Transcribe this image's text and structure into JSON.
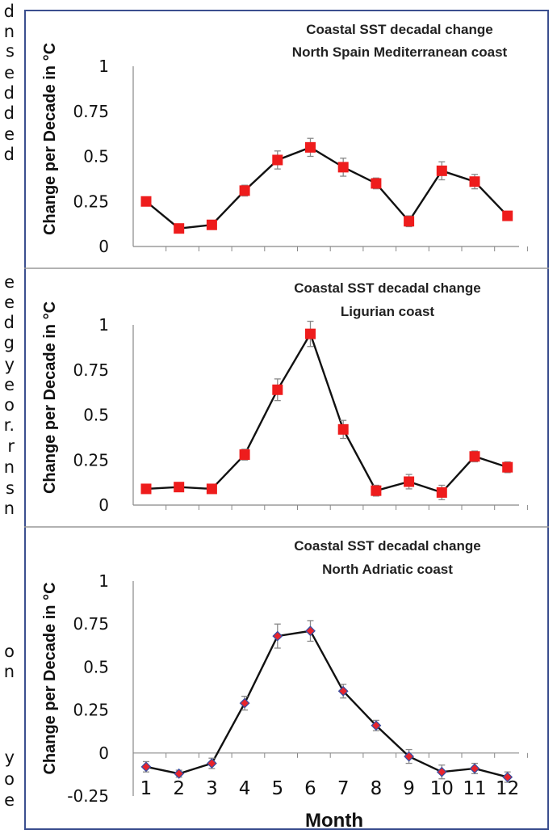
{
  "left_text_fragments": [
    "d",
    "n",
    "s",
    "e",
    "d",
    "d",
    "e",
    "d",
    "",
    "",
    "e",
    "e",
    "d",
    "g",
    "y",
    "e",
    "o",
    "r.",
    "r",
    "n",
    "s",
    "n",
    "",
    "o",
    "n",
    "",
    "y",
    "o",
    "e"
  ],
  "chart_data": [
    {
      "type": "line",
      "title": "Coastal SST decadal change",
      "subtitle": "North Spain Mediterranean coast",
      "ylabel": "Change per Decade in °C",
      "xlabel": "",
      "x": [
        1,
        2,
        3,
        4,
        5,
        6,
        7,
        8,
        9,
        10,
        11,
        12
      ],
      "values": [
        0.25,
        0.1,
        0.12,
        0.31,
        0.48,
        0.55,
        0.44,
        0.35,
        0.14,
        0.42,
        0.36,
        0.17
      ],
      "errors": [
        0,
        0,
        0.02,
        0.03,
        0.05,
        0.05,
        0.05,
        0.03,
        0.03,
        0.05,
        0.04,
        0
      ],
      "ylim": [
        0,
        1
      ],
      "yticks": [
        "0",
        "0.25",
        "0.5",
        "0.75",
        "1"
      ],
      "marker": "square",
      "marker_color": "#ee1c1c",
      "grid": false
    },
    {
      "type": "line",
      "title": "Coastal SST decadal change",
      "subtitle": "Ligurian coast",
      "ylabel": "Change per Decade in °C",
      "xlabel": "",
      "x": [
        1,
        2,
        3,
        4,
        5,
        6,
        7,
        8,
        9,
        10,
        11,
        12
      ],
      "values": [
        0.09,
        0.1,
        0.09,
        0.28,
        0.64,
        0.95,
        0.42,
        0.08,
        0.13,
        0.07,
        0.27,
        0.21
      ],
      "errors": [
        0,
        0,
        0,
        0.03,
        0.06,
        0.07,
        0.05,
        0.03,
        0.04,
        0.04,
        0.03,
        0.03
      ],
      "ylim": [
        0,
        1
      ],
      "yticks": [
        "0",
        "0.25",
        "0.5",
        "0.75",
        "1"
      ],
      "marker": "square",
      "marker_color": "#ee1c1c",
      "grid": false
    },
    {
      "type": "line",
      "title": "Coastal SST decadal change",
      "subtitle": "North Adriatic coast",
      "ylabel": "Change per Decade in °C",
      "xlabel": "Month",
      "x": [
        1,
        2,
        3,
        4,
        5,
        6,
        7,
        8,
        9,
        10,
        11,
        12
      ],
      "xticks": [
        "1",
        "2",
        "3",
        "4",
        "5",
        "6",
        "7",
        "8",
        "9",
        "10",
        "11",
        "12"
      ],
      "values": [
        -0.08,
        -0.12,
        -0.06,
        0.29,
        0.68,
        0.71,
        0.36,
        0.16,
        -0.02,
        -0.11,
        -0.09,
        -0.14
      ],
      "errors": [
        0.03,
        0.02,
        0.03,
        0.04,
        0.07,
        0.06,
        0.04,
        0.03,
        0.04,
        0.04,
        0.03,
        0.03
      ],
      "ylim": [
        -0.25,
        1
      ],
      "yticks": [
        "-0.25",
        "0",
        "0.25",
        "0.5",
        "0.75",
        "1"
      ],
      "marker": "diamond",
      "marker_color": "#e8242c",
      "grid": false
    }
  ]
}
